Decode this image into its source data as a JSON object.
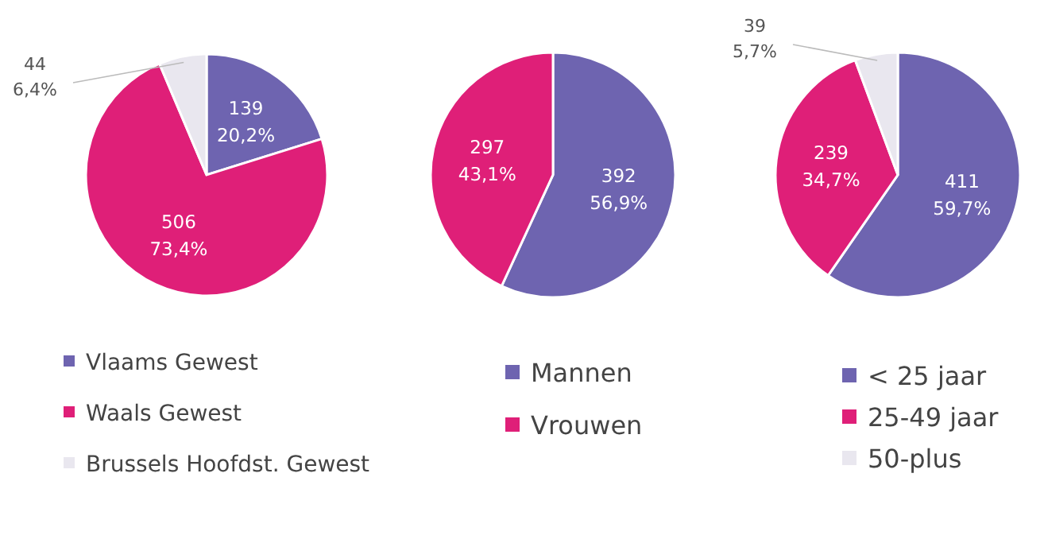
{
  "chart_data": [
    {
      "type": "pie",
      "categories": [
        "Vlaams Gewest",
        "Waals Gewest",
        "Brussels Hoofdst. Gewest"
      ],
      "values": [
        139,
        506,
        44
      ],
      "colors": [
        "#6e64b0",
        "#df1f78",
        "#e9e7ef"
      ],
      "value_labels": [
        "139\n20,2%",
        "506\n73,4%",
        "44\n6,4%"
      ],
      "legend": "bottom"
    },
    {
      "type": "pie",
      "categories": [
        "Mannen",
        "Vrouwen"
      ],
      "values": [
        392,
        297
      ],
      "colors": [
        "#6e64b0",
        "#df1f78"
      ],
      "value_labels": [
        "392\n56,9%",
        "297\n43,1%"
      ],
      "legend": "bottom"
    },
    {
      "type": "pie",
      "categories": [
        "< 25 jaar",
        "25-49 jaar",
        "50-plus"
      ],
      "values": [
        411,
        239,
        39
      ],
      "colors": [
        "#6e64b0",
        "#df1f78",
        "#e9e7ef"
      ],
      "value_labels": [
        "411\n59,7%",
        "239\n34,7%",
        "39\n5,7%"
      ],
      "legend": "bottom"
    }
  ]
}
